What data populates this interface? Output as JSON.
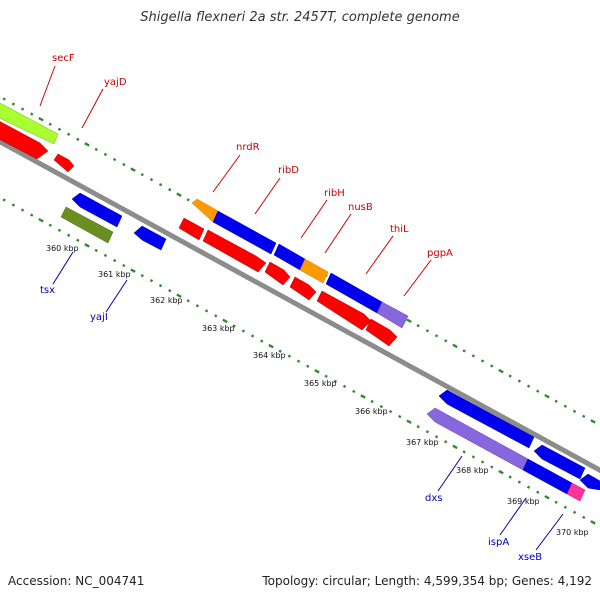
{
  "title": "Shigella flexneri 2a str. 2457T, complete genome",
  "footer": {
    "accession": "Accession: NC_004741",
    "summary": "Topology: circular; Length: 4,599,354 bp; Genes: 4,192"
  },
  "colors": {
    "backbone": "#8c8c8c",
    "ruler": "#2e8b2e",
    "forward_label": "#cc0000",
    "reverse_label": "#0000aa",
    "gene_red": "#ff0000",
    "gene_blue": "#0000ee",
    "gene_orange": "#ff9900",
    "gene_lime": "#aaff33",
    "gene_olive": "#6b8e23",
    "gene_lavender": "#8866dd",
    "gene_pink": "#ff3399"
  },
  "scale_labels": [
    "360 kbp",
    "361 kbp",
    "362 kbp",
    "363 kbp",
    "364 kbp",
    "365 kbp",
    "366 kbp",
    "367 kbp",
    "368 kbp",
    "369 kbp",
    "370 kbp"
  ],
  "forward_gene_labels": [
    "secF",
    "yajD",
    "nrdR",
    "ribD",
    "ribH",
    "nusB",
    "thiL",
    "pgpA"
  ],
  "reverse_gene_labels": [
    "tsx",
    "yajI",
    "dxs",
    "ispA",
    "xseB"
  ]
}
